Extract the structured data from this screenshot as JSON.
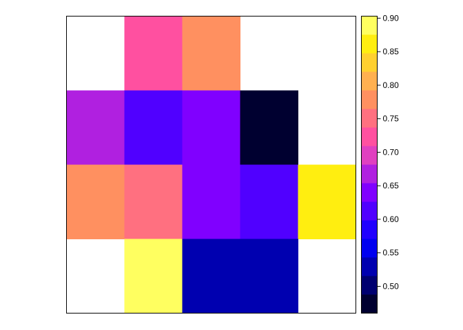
{
  "chart_data": {
    "type": "heatmap",
    "title": "",
    "xlabel": "",
    "ylabel": "",
    "grid": false,
    "rows": 4,
    "cols": 5,
    "values": [
      [
        null,
        0.72,
        0.78,
        null,
        null
      ],
      [
        0.67,
        0.62,
        0.64,
        0.47,
        null
      ],
      [
        0.78,
        0.75,
        0.64,
        0.6,
        0.875
      ],
      [
        null,
        0.9,
        0.53,
        0.53,
        null
      ]
    ],
    "legend": {
      "placement": "right",
      "range": [
        0.46,
        0.903
      ],
      "ticks": [
        "0.50",
        "0.55",
        "0.60",
        "0.65",
        "0.70",
        "0.75",
        "0.80",
        "0.85",
        "0.90"
      ],
      "tick_values": [
        0.5,
        0.55,
        0.6,
        0.65,
        0.7,
        0.75,
        0.8,
        0.85,
        0.9
      ],
      "colors_top_to_bottom": [
        "#FFFF60",
        "#FFEE10",
        "#FFD030",
        "#FFB050",
        "#FF9060",
        "#FF7080",
        "#FF50A0",
        "#E040C0",
        "#B020E0",
        "#8000FF",
        "#5000FF",
        "#2000FF",
        "#0000F0",
        "#0000B0",
        "#000070",
        "#000030"
      ]
    }
  }
}
